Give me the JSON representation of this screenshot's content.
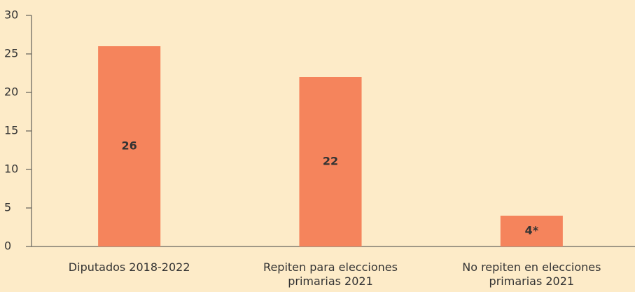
{
  "chart_data": {
    "type": "bar",
    "categories": [
      "Diputados 2018-2022",
      "Repiten para elecciones primarias 2021",
      "No repiten en elecciones primarias 2021"
    ],
    "values": [
      26,
      22,
      4
    ],
    "value_labels": [
      "26",
      "22",
      "4*"
    ],
    "color": "#f5845c",
    "ylim": [
      0,
      30
    ],
    "yticks": [
      0,
      5,
      10,
      15,
      20,
      25,
      30
    ],
    "grid": false
  }
}
